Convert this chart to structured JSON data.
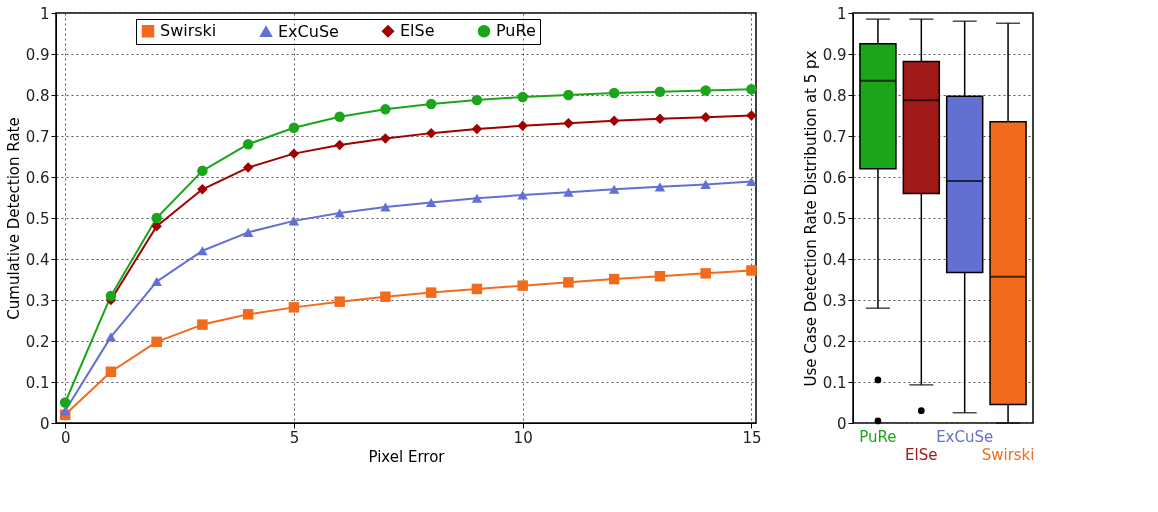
{
  "chart_data": [
    {
      "type": "line",
      "xlabel": "Pixel Error",
      "ylabel": "Cumulative Detection Rate",
      "x": [
        0,
        1,
        2,
        3,
        4,
        5,
        6,
        7,
        8,
        9,
        10,
        11,
        12,
        13,
        14,
        15
      ],
      "series": [
        {
          "name": "Swirski",
          "color": "#f26b1d",
          "marker": "square",
          "values": [
            0.02,
            0.125,
            0.198,
            0.24,
            0.265,
            0.282,
            0.296,
            0.308,
            0.318,
            0.327,
            0.335,
            0.343,
            0.351,
            0.358,
            0.365,
            0.372
          ]
        },
        {
          "name": "ExCuSe",
          "color": "#6270d4",
          "marker": "triangle",
          "values": [
            0.03,
            0.21,
            0.345,
            0.42,
            0.465,
            0.493,
            0.512,
            0.527,
            0.538,
            0.548,
            0.556,
            0.563,
            0.57,
            0.576,
            0.582,
            0.589
          ]
        },
        {
          "name": "ElSe",
          "color": "#a00000",
          "marker": "diamond",
          "values": [
            null,
            0.3,
            0.48,
            0.57,
            0.623,
            0.657,
            0.678,
            0.694,
            0.707,
            0.717,
            0.725,
            0.731,
            0.737,
            0.742,
            0.746,
            0.75
          ]
        },
        {
          "name": "PuRe",
          "color": "#1aa51a",
          "marker": "circle",
          "values": [
            0.05,
            0.31,
            0.5,
            0.615,
            0.68,
            0.72,
            0.747,
            0.765,
            0.778,
            0.788,
            0.795,
            0.8,
            0.805,
            0.808,
            0.811,
            0.814
          ]
        }
      ],
      "xlim": [
        -0.2,
        15.1
      ],
      "xticks": [
        0,
        5,
        10,
        15
      ],
      "ylim": [
        0,
        1
      ],
      "yticks": [
        0,
        0.1,
        0.2,
        0.3,
        0.4,
        0.5,
        0.6,
        0.7,
        0.8,
        0.9,
        1
      ],
      "grid": true,
      "legend": "top",
      "line_style": "solid"
    },
    {
      "type": "box",
      "ylabel": "Use Case Detection Rate Distribution at 5 px",
      "categories": [
        "PuRe",
        "ElSe",
        "ExCuSe",
        "Swirski"
      ],
      "colors": [
        "#1aa51a",
        "#a01a1a",
        "#6270d4",
        "#f26b1d"
      ],
      "boxes": [
        {
          "low": 0.28,
          "q1": 0.62,
          "median": 0.835,
          "q3": 0.925,
          "high": 0.985,
          "outliers": [
            0.105,
            0.005
          ]
        },
        {
          "low": 0.093,
          "q1": 0.56,
          "median": 0.787,
          "q3": 0.882,
          "high": 0.985,
          "outliers": [
            0.03
          ]
        },
        {
          "low": 0.025,
          "q1": 0.367,
          "median": 0.59,
          "q3": 0.797,
          "high": 0.98
        },
        {
          "low": 0,
          "q1": 0.045,
          "median": 0.357,
          "q3": 0.735,
          "high": 0.975
        }
      ],
      "ylim": [
        0,
        1
      ],
      "yticks": [
        0,
        0.1,
        0.2,
        0.3,
        0.4,
        0.5,
        0.6,
        0.7,
        0.8,
        0.9,
        1
      ],
      "grid": "y"
    }
  ]
}
